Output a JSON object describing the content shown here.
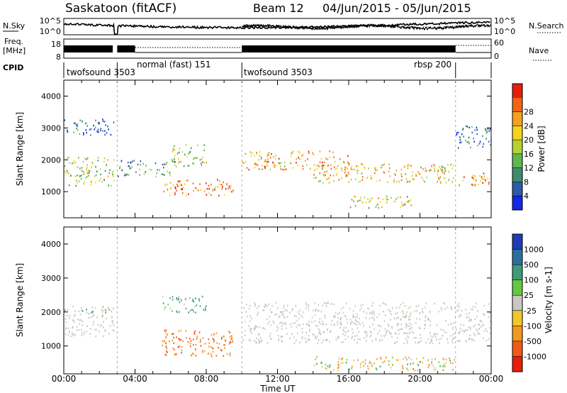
{
  "header": {
    "title": "Saskatoon (fitACF)",
    "beam": "Beam 12",
    "date_range": "04/Jun/2015 - 05/Jun/2015"
  },
  "summary_panels": {
    "nsky_label": "N.Sky",
    "nsky_ticks": [
      "10^5",
      "10^0"
    ],
    "nsearch_label": "N.Search",
    "nsearch_ticks": [
      "10^5",
      "10^0"
    ],
    "freq_label_1": "Freq.",
    "freq_label_2": "[MHz]",
    "freq_ticks": [
      "18",
      "8"
    ],
    "nave_label": "Nave",
    "nave_ticks": [
      "60",
      "0"
    ],
    "cpid_label": "CPID"
  },
  "cpid_segments": [
    {
      "name": "twofsound",
      "id": "3503",
      "start_h": 0,
      "end_h": 3.0
    },
    {
      "name": "normal (fast)",
      "id": "151",
      "start_h": 3.0,
      "end_h": 10.0
    },
    {
      "name": "twofsound",
      "id": "3503",
      "start_h": 10.0,
      "end_h": 22.0
    },
    {
      "name": "rbsp",
      "id": "200",
      "start_h": 22.0,
      "end_h": 24.0
    }
  ],
  "cpid_labels": [
    "twofsound 3503",
    "normal (fast) 151",
    "twofsound 3503",
    "rbsp 200"
  ],
  "power_colorbar": {
    "label": "Power [dB]",
    "ticks": [
      "4",
      "8",
      "12",
      "16",
      "20",
      "24",
      "28"
    ],
    "colors": [
      "#1428e6",
      "#2a5aa8",
      "#3d8c6e",
      "#5fb84a",
      "#b4d232",
      "#f5d21e",
      "#f5a01e",
      "#f06414",
      "#e61e0a"
    ]
  },
  "velocity_colorbar": {
    "label": "Velocity [m s-1]",
    "ticks": [
      "1000",
      "500",
      "100",
      "25",
      "-25",
      "-100",
      "-500",
      "-1000"
    ],
    "colors": [
      "#1e3cb4",
      "#2e6e9e",
      "#3c9c78",
      "#64c840",
      "#c8c8c0",
      "#f0c828",
      "#f5961e",
      "#f05a14",
      "#e61e0a"
    ]
  },
  "ground_scatter_color": "#c8c8c0",
  "chart_data": [
    {
      "type": "heatmap",
      "title": "",
      "xlabel": "",
      "ylabel": "Slant Range [km]",
      "x_ticks": [
        "00:00",
        "04:00",
        "08:00",
        "12:00",
        "16:00",
        "20:00",
        "00:00"
      ],
      "y_ticks": [
        "1000",
        "2000",
        "3000",
        "4000"
      ],
      "ylim": [
        180,
        4500
      ],
      "xlim_hours": [
        0,
        24
      ],
      "quantity": "Power [dB]",
      "scatter_regions": [
        {
          "t0": 0.0,
          "t1": 2.8,
          "r0": 1200,
          "r1": 2100,
          "level_db": 16
        },
        {
          "t0": 0.0,
          "t1": 2.8,
          "r0": 2800,
          "r1": 3300,
          "level_db": 6
        },
        {
          "t0": 3.0,
          "t1": 6.0,
          "r0": 1500,
          "r1": 2000,
          "level_db": 10
        },
        {
          "t0": 5.5,
          "t1": 9.5,
          "r0": 900,
          "r1": 1400,
          "level_db": 26
        },
        {
          "t0": 6.0,
          "t1": 8.0,
          "r0": 1800,
          "r1": 2500,
          "level_db": 16
        },
        {
          "t0": 10.0,
          "t1": 16.0,
          "r0": 1700,
          "r1": 2300,
          "level_db": 22
        },
        {
          "t0": 14.0,
          "t1": 22.0,
          "r0": 1300,
          "r1": 1900,
          "level_db": 20
        },
        {
          "t0": 16.0,
          "t1": 19.5,
          "r0": 500,
          "r1": 900,
          "level_db": 18
        },
        {
          "t0": 22.0,
          "t1": 24.0,
          "r0": 1200,
          "r1": 1600,
          "level_db": 24
        },
        {
          "t0": 22.0,
          "t1": 24.0,
          "r0": 2400,
          "r1": 3100,
          "level_db": 6
        }
      ]
    },
    {
      "type": "heatmap",
      "title": "",
      "xlabel": "Time UT",
      "ylabel": "Slant Range [km]",
      "x_ticks": [
        "00:00",
        "04:00",
        "08:00",
        "12:00",
        "16:00",
        "20:00",
        "00:00"
      ],
      "y_ticks": [
        "1000",
        "2000",
        "3000",
        "4000"
      ],
      "ylim": [
        180,
        4500
      ],
      "xlim_hours": [
        0,
        24
      ],
      "quantity": "Velocity [m s-1]",
      "scatter_regions": [
        {
          "t0": 0.0,
          "t1": 2.8,
          "r0": 1300,
          "r1": 2200,
          "velocity": 0,
          "ground": true
        },
        {
          "t0": 0.0,
          "t1": 2.8,
          "r0": 2000,
          "r1": 2100,
          "velocity": 100
        },
        {
          "t0": 5.5,
          "t1": 9.5,
          "r0": 700,
          "r1": 1500,
          "velocity": -300
        },
        {
          "t0": 5.5,
          "t1": 8.0,
          "r0": 2000,
          "r1": 2500,
          "velocity": 100
        },
        {
          "t0": 10.0,
          "t1": 24.0,
          "r0": 1100,
          "r1": 2300,
          "velocity": 0,
          "ground": true
        },
        {
          "t0": 14.0,
          "t1": 22.0,
          "r0": 300,
          "r1": 700,
          "velocity": -50
        }
      ]
    }
  ]
}
